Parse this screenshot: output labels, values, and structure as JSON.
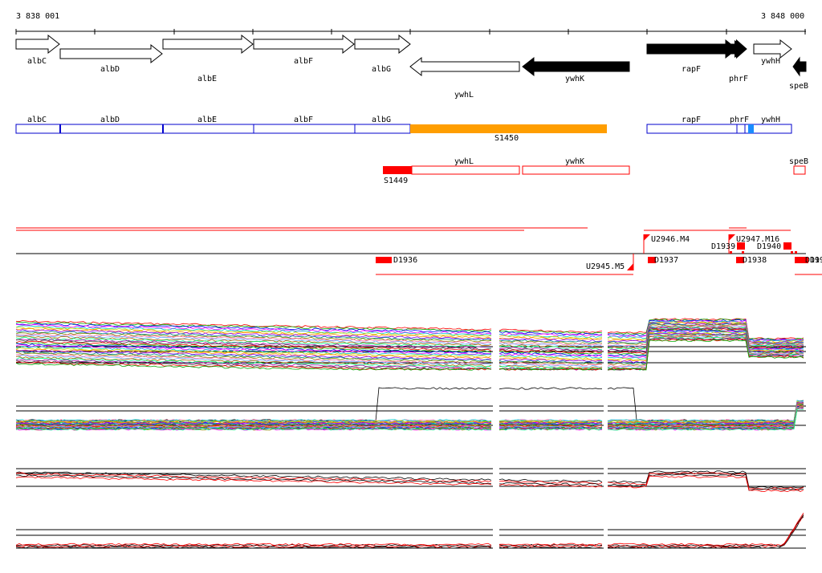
{
  "ruler": {
    "start_label": "3 838 001",
    "end_label": "3 848 000"
  },
  "genes": [
    {
      "label": "albC",
      "dir": "+",
      "fill": "white"
    },
    {
      "label": "albD",
      "dir": "+",
      "fill": "white"
    },
    {
      "label": "albE",
      "dir": "+",
      "fill": "white"
    },
    {
      "label": "albF",
      "dir": "+",
      "fill": "white"
    },
    {
      "label": "albG",
      "dir": "+",
      "fill": "white"
    },
    {
      "label": "ywhL",
      "dir": "-",
      "fill": "white"
    },
    {
      "label": "ywhK",
      "dir": "-",
      "fill": "black"
    },
    {
      "label": "rapF",
      "dir": "+",
      "fill": "black"
    },
    {
      "label": "phrF",
      "dir": "+",
      "fill": "black"
    },
    {
      "label": "ywhH",
      "dir": "+",
      "fill": "white"
    },
    {
      "label": "speB",
      "dir": "-",
      "fill": "black"
    }
  ],
  "blue_track": {
    "labels": [
      "albC",
      "albD",
      "albE",
      "albF",
      "albG",
      "rapF",
      "phrF",
      "ywhH"
    ],
    "highlight_label": "S1450",
    "highlight_color": "#ff9e00",
    "cyan_color": "#1a8cff"
  },
  "red_track": {
    "labels": [
      "ywhL",
      "ywhK",
      "speB"
    ],
    "segment_label": "S1449",
    "color": "#ff0000"
  },
  "features": [
    {
      "label": "U2946.M4"
    },
    {
      "label": "U2947.M16"
    },
    {
      "label": "D1939"
    },
    {
      "label": "D1940"
    },
    {
      "label": "D1936"
    },
    {
      "label": "D1937"
    },
    {
      "label": "D1938"
    },
    {
      "label": "U2945.M5"
    },
    {
      "label": "D19"
    },
    {
      "label": "D19"
    }
  ],
  "colors": {
    "gene_outline": "#000000",
    "blue_outline": "#0000cc",
    "red": "#ff0000",
    "expression_palette": [
      "#ff0000",
      "#00aa00",
      "#0000ff",
      "#ff00ff",
      "#00cccc",
      "#cccc00",
      "#ff8800",
      "#8800ff",
      "#008888",
      "#888800",
      "#ff66aa",
      "#66aaff",
      "#aa6600",
      "#00ff88",
      "#aa00aa",
      "#444444"
    ]
  }
}
